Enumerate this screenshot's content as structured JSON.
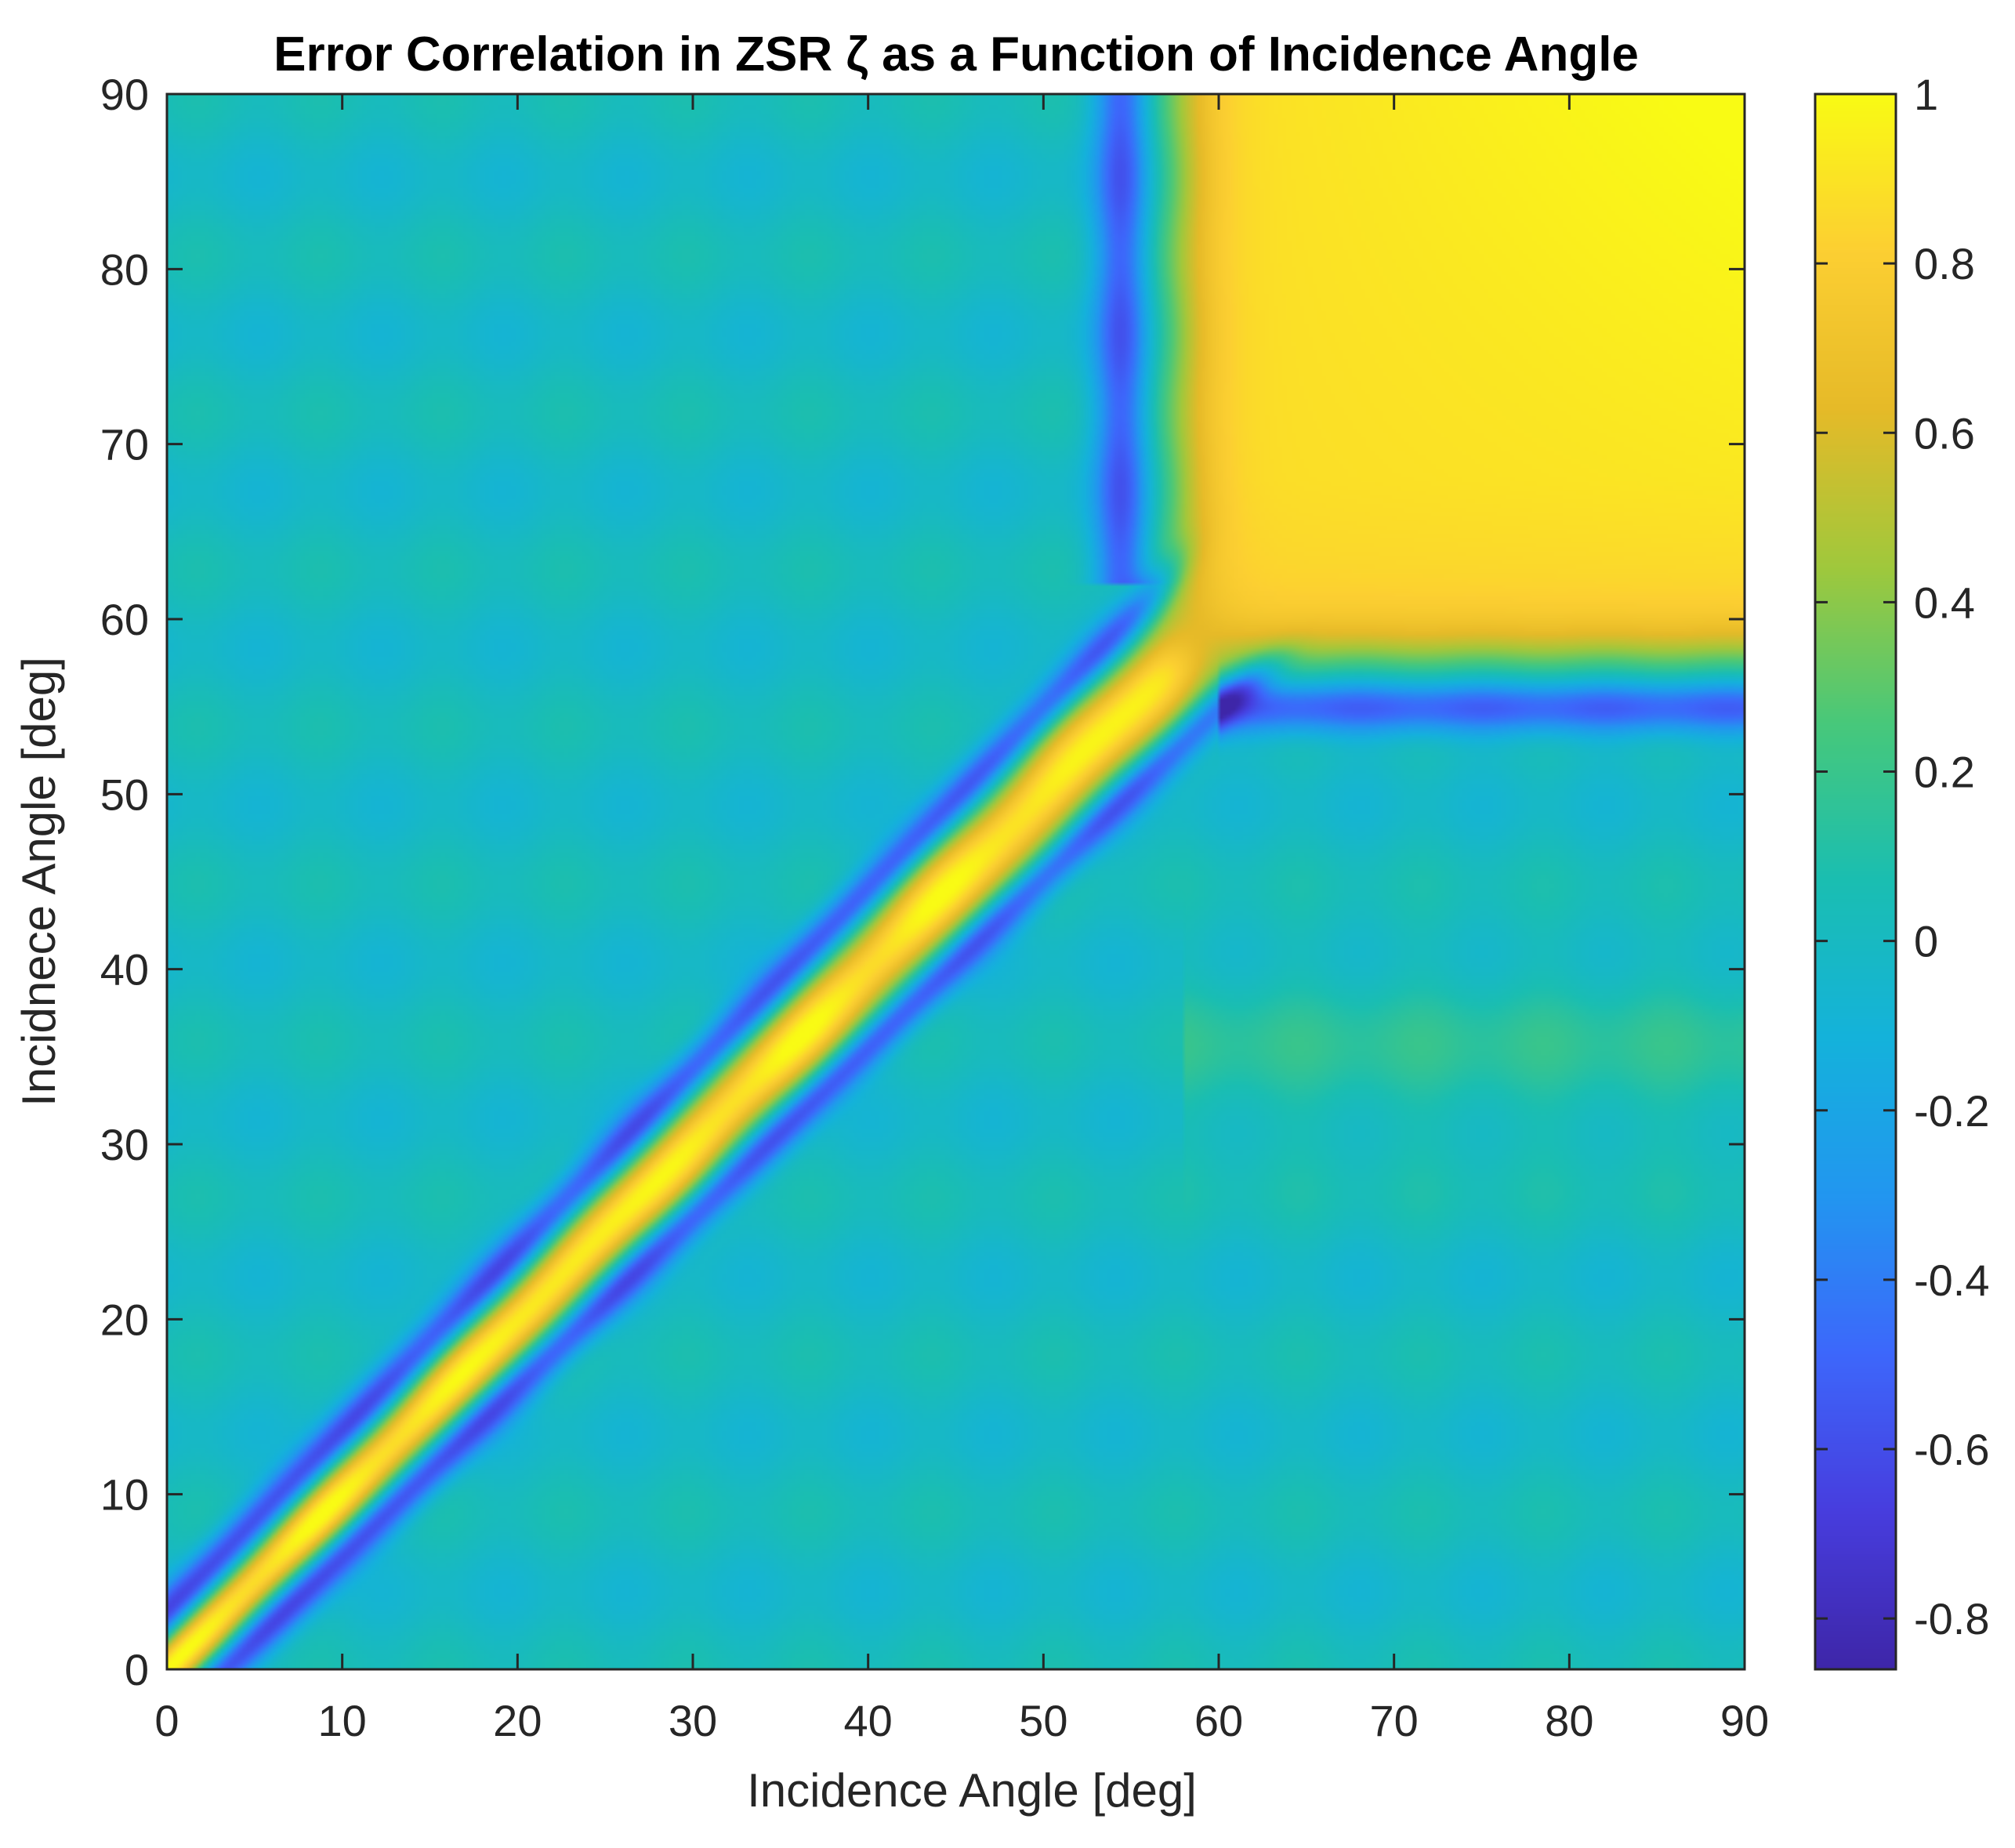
{
  "chart_data": {
    "type": "heatmap",
    "title": "Error Correlation in ZSR ζ as a Function of Incidence Angle",
    "xlabel": "Incidence Angle [deg]",
    "ylabel": "Incidnece Angle [deg]",
    "xlim": [
      0,
      90
    ],
    "ylim": [
      0,
      90
    ],
    "x_ticks": [
      0,
      10,
      20,
      30,
      40,
      50,
      60,
      70,
      80,
      90
    ],
    "y_ticks": [
      0,
      10,
      20,
      30,
      40,
      50,
      60,
      70,
      80,
      90
    ],
    "x_tick_labels": [
      "0",
      "10",
      "20",
      "30",
      "40",
      "50",
      "60",
      "70",
      "80",
      "90"
    ],
    "y_tick_labels": [
      "0",
      "10",
      "20",
      "30",
      "40",
      "50",
      "60",
      "70",
      "80",
      "90"
    ],
    "colorbar": {
      "limits": [
        -0.86,
        1
      ],
      "ticks": [
        -0.8,
        -0.6,
        -0.4,
        -0.2,
        0,
        0.2,
        0.4,
        0.6,
        0.8,
        1
      ],
      "tick_labels": [
        "-0.8",
        "-0.6",
        "-0.4",
        "-0.2",
        "0",
        "0.2",
        "0.4",
        "0.6",
        "0.8",
        "1"
      ],
      "colormap": "parula"
    },
    "grid": false,
    "approximate_structure": {
      "diagonal_correlation": 1,
      "diagonal_flank_correlation": -0.7,
      "background_correlation": 0.0,
      "high_angle_block": {
        "range_deg": [
          58,
          90
        ],
        "correlation": 0.9
      },
      "anticorrelated_band": {
        "row_range_deg": [
          53,
          56
        ],
        "col_range_deg": [
          60,
          90
        ],
        "correlation": -0.6
      }
    }
  }
}
